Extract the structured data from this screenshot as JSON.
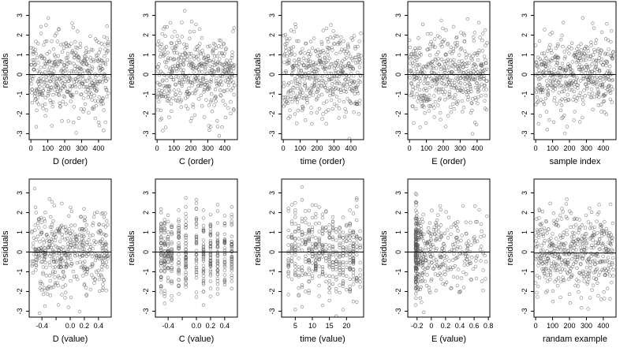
{
  "chart_data": [
    {
      "type": "scatter",
      "id": "p1",
      "xlabel": "D (order)",
      "ylabel": "residuals",
      "xlim": [
        -10,
        475
      ],
      "ylim": [
        -3.3,
        3.7
      ],
      "xticks": [
        0,
        100,
        200,
        300,
        400
      ],
      "yticks": [
        -3,
        -2,
        -1,
        0,
        1,
        2,
        3
      ],
      "hline": 0,
      "pattern": "index",
      "seed": 11
    },
    {
      "type": "scatter",
      "id": "p2",
      "xlabel": "C (order)",
      "ylabel": "residuals",
      "xlim": [
        -10,
        475
      ],
      "ylim": [
        -3.3,
        3.7
      ],
      "xticks": [
        0,
        100,
        200,
        300,
        400
      ],
      "yticks": [
        -3,
        -2,
        -1,
        0,
        1,
        2,
        3
      ],
      "hline": 0,
      "pattern": "index",
      "seed": 23
    },
    {
      "type": "scatter",
      "id": "p3",
      "xlabel": "time (order)",
      "ylabel": "residuals",
      "xlim": [
        -10,
        475
      ],
      "ylim": [
        -3.3,
        3.7
      ],
      "xticks": [
        0,
        100,
        200,
        300,
        400
      ],
      "yticks": [
        -3,
        -2,
        -1,
        0,
        1,
        2,
        3
      ],
      "hline": 0,
      "pattern": "index",
      "seed": 37
    },
    {
      "type": "scatter",
      "id": "p4",
      "xlabel": "E (order)",
      "ylabel": "residuals",
      "xlim": [
        -10,
        475
      ],
      "ylim": [
        -3.3,
        3.7
      ],
      "xticks": [
        0,
        100,
        200,
        300,
        400
      ],
      "yticks": [
        -3,
        -2,
        -1,
        0,
        1,
        2,
        3
      ],
      "hline": 0,
      "pattern": "index",
      "seed": 41
    },
    {
      "type": "scatter",
      "id": "p5",
      "xlabel": "sample index",
      "ylabel": "residuals",
      "xlim": [
        -10,
        475
      ],
      "ylim": [
        -3.3,
        3.7
      ],
      "xticks": [
        0,
        100,
        200,
        300,
        400
      ],
      "yticks": [
        -3,
        -2,
        -1,
        0,
        1,
        2,
        3
      ],
      "hline": 0,
      "pattern": "index",
      "seed": 53
    },
    {
      "type": "scatter",
      "id": "p6",
      "xlabel": "D (value)",
      "ylabel": "residuals",
      "xlim": [
        -0.58,
        0.58
      ],
      "ylim": [
        -3.3,
        3.7
      ],
      "xticks": [
        -0.4,
        -0.2,
        0.0,
        0.2,
        0.4
      ],
      "xtick_labels": [
        "-0.4",
        "",
        "0.0",
        "0.2",
        "0.4"
      ],
      "yticks": [
        -3,
        -2,
        -1,
        0,
        1,
        2,
        3
      ],
      "hline": 0,
      "pattern": "uniform",
      "range": [
        -0.55,
        0.55
      ],
      "seed": 61
    },
    {
      "type": "scatter",
      "id": "p7",
      "xlabel": "C (value)",
      "ylabel": "residuals",
      "xlim": [
        -0.58,
        0.58
      ],
      "ylim": [
        -3.3,
        3.7
      ],
      "xticks": [
        -0.4,
        -0.2,
        0.0,
        0.2,
        0.4
      ],
      "xtick_labels": [
        "-0.4",
        "",
        "0.0",
        "0.2",
        "0.4"
      ],
      "yticks": [
        -3,
        -2,
        -1,
        0,
        1,
        2,
        3
      ],
      "hline": 0,
      "pattern": "discrete",
      "levels": [
        -0.5,
        -0.45,
        -0.4,
        -0.35,
        -0.25,
        -0.15,
        0.0,
        0.1,
        0.2,
        0.3,
        0.4,
        0.5
      ],
      "seed": 71
    },
    {
      "type": "scatter",
      "id": "p8",
      "xlabel": "time (value)",
      "ylabel": "residuals",
      "xlim": [
        1,
        25
      ],
      "ylim": [
        -3.3,
        3.7
      ],
      "xticks": [
        5,
        10,
        15,
        20
      ],
      "yticks": [
        -3,
        -2,
        -1,
        0,
        1,
        2,
        3
      ],
      "hline": 0,
      "pattern": "discrete",
      "levels": [
        3,
        4,
        5,
        6,
        7,
        8,
        9,
        10,
        11,
        12,
        13,
        14,
        15,
        16,
        17,
        18,
        19,
        20,
        21,
        22,
        23,
        24
      ],
      "seed": 83
    },
    {
      "type": "scatter",
      "id": "p9",
      "xlabel": "E (value)",
      "ylabel": "residuals",
      "xlim": [
        -0.33,
        0.82
      ],
      "ylim": [
        -3.3,
        3.7
      ],
      "xticks": [
        -0.2,
        0.0,
        0.2,
        0.4,
        0.6,
        0.8
      ],
      "yticks": [
        -3,
        -2,
        -1,
        0,
        1,
        2,
        3
      ],
      "hline": 0,
      "pattern": "skewed",
      "seed": 97
    },
    {
      "type": "scatter",
      "id": "p10",
      "xlabel": "randam example",
      "ylabel": "residuals",
      "xlim": [
        -10,
        475
      ],
      "ylim": [
        -3.3,
        3.7
      ],
      "xticks": [
        0,
        100,
        200,
        300,
        400
      ],
      "yticks": [
        -3,
        -2,
        -1,
        0,
        1,
        2,
        3
      ],
      "hline": -0.05,
      "pattern": "index",
      "seed": 101
    }
  ],
  "n_points": 460,
  "point_color": "#555555",
  "line_color": "#000000"
}
